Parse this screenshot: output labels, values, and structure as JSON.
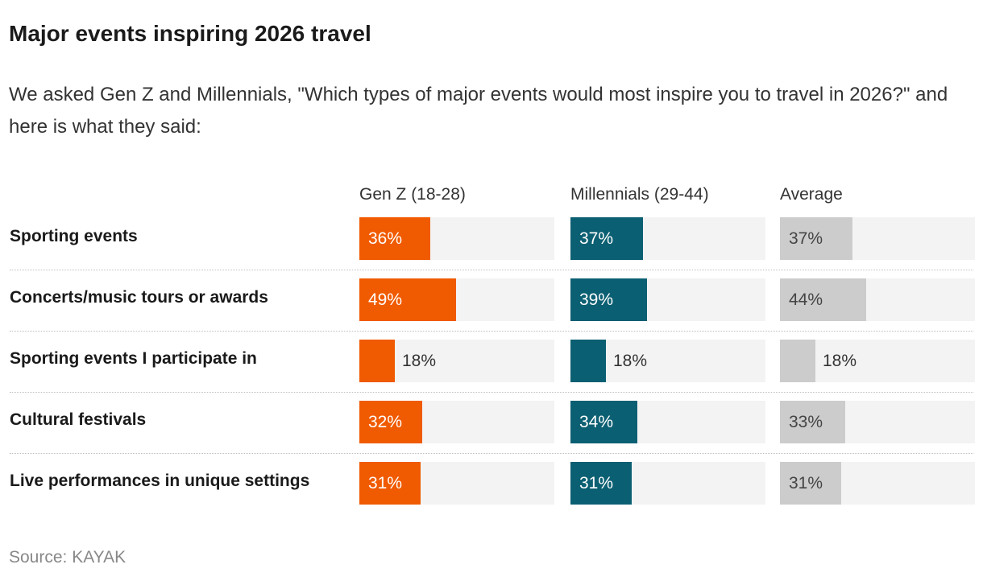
{
  "header": {
    "title": "Major events inspiring 2026 travel",
    "subtitle": "We asked Gen Z and Millennials, \"Which types of major events would most inspire you to travel in 2026?\" and here is what they said:"
  },
  "footer": {
    "source": "Source: KAYAK"
  },
  "colors": {
    "genz": "#f05a00",
    "millennials": "#0b5f72",
    "average": "#cccccc",
    "track": "#f3f3f3"
  },
  "chart_data": {
    "type": "bar",
    "title": "Major events inspiring 2026 travel",
    "categories": [
      "Sporting events",
      "Concerts/music tours or awards",
      "Sporting events I participate in",
      "Cultural festivals",
      "Live performances in unique settings"
    ],
    "series": [
      {
        "name": "Gen Z (18-28)",
        "values": [
          36,
          49,
          18,
          32,
          31
        ],
        "labels": [
          "36%",
          "49%",
          "18%",
          "32%",
          "31%"
        ]
      },
      {
        "name": "Millennials (29-44)",
        "values": [
          37,
          39,
          18,
          34,
          31
        ],
        "labels": [
          "37%",
          "39%",
          "18%",
          "34%",
          "31%"
        ]
      },
      {
        "name": "Average",
        "values": [
          37,
          44,
          18,
          33,
          31
        ],
        "labels": [
          "37%",
          "44%",
          "18%",
          "33%",
          "31%"
        ]
      }
    ],
    "ylim": [
      0,
      100
    ],
    "grid": false,
    "legend": "top"
  }
}
